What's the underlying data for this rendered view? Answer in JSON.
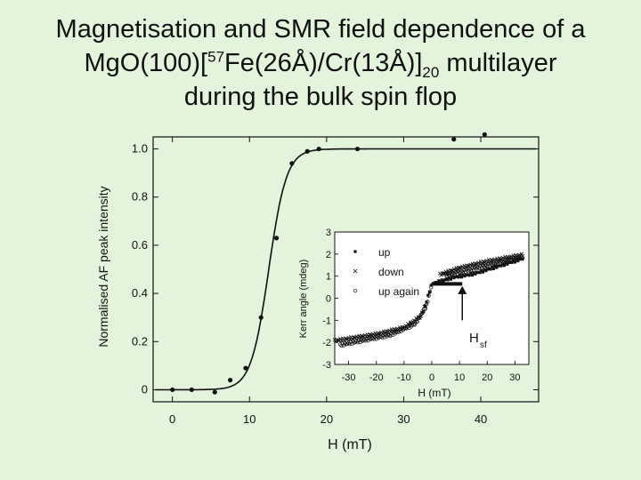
{
  "title": {
    "line1": "Magnetisation and SMR field dependence of a",
    "line2_a": "MgO(100)[",
    "line2_sup": "57",
    "line2_b": "Fe(26Å)/Cr(13Å)]",
    "line2_sub": "20",
    "line2_c": " multilayer",
    "line3": "during the bulk spin flop"
  },
  "colors": {
    "background": "#e3f3dc",
    "ink": "#111111",
    "inset_fill": "#ffffff"
  },
  "chart_data": [
    {
      "type": "scatter",
      "title": "",
      "xlabel": "H (mT)",
      "ylabel": "Normalised AF peak intensity",
      "xlim": [
        -2.5,
        47.5
      ],
      "ylim": [
        -0.05,
        1.05
      ],
      "xticks": [
        0,
        10,
        20,
        30,
        40
      ],
      "yticks": [
        {
          "value": 0,
          "label": "0"
        },
        {
          "value": 0.2,
          "label": "0.2"
        },
        {
          "value": 0.4,
          "label": "0.4"
        },
        {
          "value": 0.6,
          "label": "0.6"
        },
        {
          "value": 0.8,
          "label": "0.8"
        },
        {
          "value": 1.0,
          "label": "1.0"
        }
      ],
      "points": [
        [
          0.0,
          0.0
        ],
        [
          2.5,
          0.0
        ],
        [
          5.5,
          -0.01
        ],
        [
          7.5,
          0.04
        ],
        [
          9.5,
          0.09
        ],
        [
          11.5,
          0.3
        ],
        [
          13.5,
          0.63
        ],
        [
          15.5,
          0.94
        ],
        [
          17.5,
          0.99
        ],
        [
          19.0,
          1.0
        ],
        [
          24.0,
          1.0
        ],
        [
          36.5,
          1.04
        ],
        [
          40.5,
          1.06
        ]
      ],
      "fit_curve": {
        "low": 0.0,
        "high": 1.0,
        "center": 12.5,
        "width": 1.15
      }
    },
    {
      "type": "scatter",
      "title": "",
      "xlabel": "H (mT)",
      "ylabel": "Kerr angle (mdeg)",
      "xlim": [
        -35,
        35
      ],
      "ylim": [
        -3,
        3
      ],
      "xticks": [
        -30,
        -20,
        -10,
        0,
        10,
        20,
        30
      ],
      "yticks": [
        -3,
        -2,
        -1,
        0,
        1,
        2,
        3
      ],
      "legend": [
        {
          "marker": "square",
          "label": "up"
        },
        {
          "marker": "cross",
          "label": "down"
        },
        {
          "marker": "circle",
          "label": "up again"
        }
      ],
      "series": [
        {
          "name": "up",
          "segments": [
            [
              [
                -3,
                -0.6
              ],
              [
                0,
                0.65
              ],
              [
                8,
                0.95
              ],
              [
                15,
                1.1
              ],
              [
                33,
                1.8
              ]
            ]
          ]
        },
        {
          "name": "down",
          "segments": [
            [
              [
                -35,
                -2.0
              ],
              [
                -20,
                -1.7
              ],
              [
                -10,
                -1.4
              ],
              [
                -4,
                -0.9
              ],
              [
                -2,
                -0.3
              ]
            ],
            [
              [
                3,
                1.0
              ],
              [
                10,
                1.3
              ],
              [
                20,
                1.6
              ],
              [
                33,
                1.9
              ]
            ]
          ]
        },
        {
          "name": "up again",
          "segments": [
            [
              [
                -33,
                -2.05
              ],
              [
                -15,
                -1.6
              ],
              [
                -6,
                -1.1
              ],
              [
                -2,
                -0.3
              ],
              [
                0,
                0.7
              ]
            ],
            [
              [
                5,
                1.1
              ],
              [
                15,
                1.4
              ],
              [
                33,
                1.95
              ]
            ]
          ]
        }
      ],
      "flat_segment": {
        "x": [
          0,
          11
        ],
        "y": 0.65
      },
      "annotation": {
        "text": "H",
        "subscript": "sf",
        "arrow_x": 11,
        "arrow_from_y": -1.0,
        "arrow_to_y": 0.55
      }
    }
  ]
}
